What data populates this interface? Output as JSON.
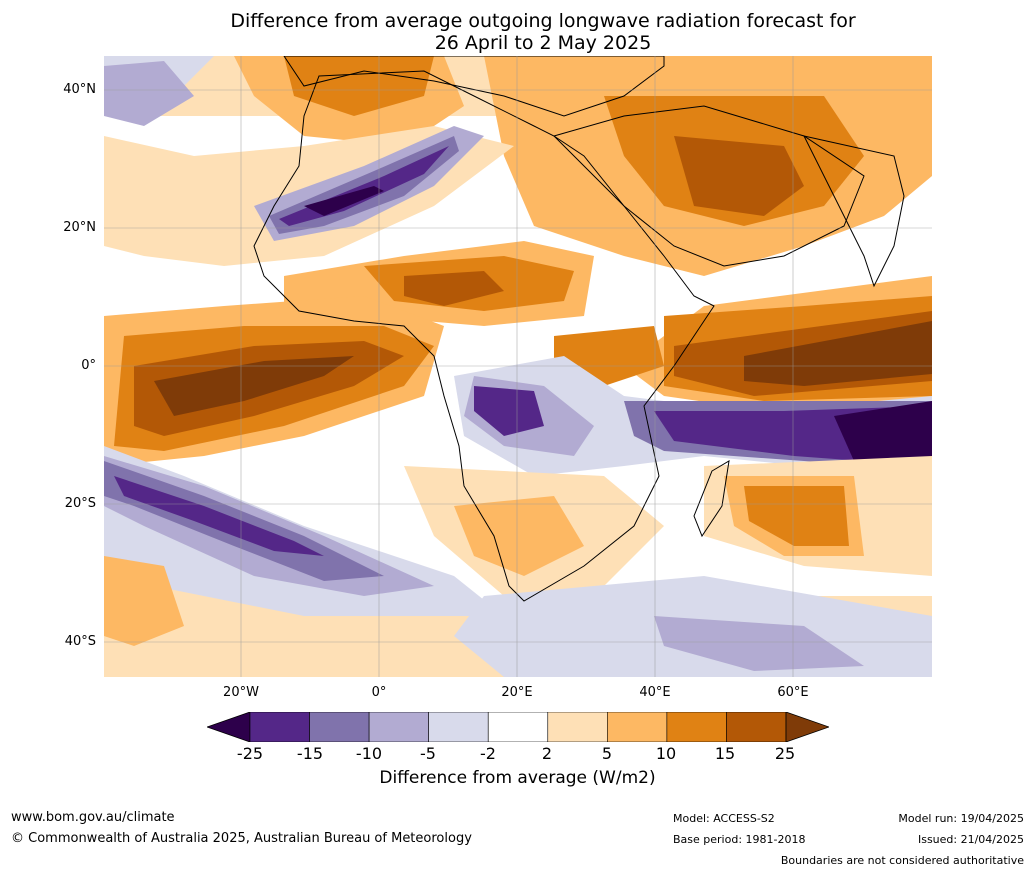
{
  "title_line1": "Difference from average outgoing longwave radiation forecast for",
  "title_line2": "26 April to 2 May 2025",
  "lat_labels": [
    "40°N",
    "20°N",
    "0°",
    "20°S",
    "40°S"
  ],
  "lon_labels": [
    "20°W",
    "0°",
    "20°E",
    "40°E",
    "60°E"
  ],
  "colorbar": {
    "ticks": [
      "-25",
      "-15",
      "-10",
      "-5",
      "-2",
      "2",
      "5",
      "10",
      "15",
      "25"
    ],
    "colors": [
      "#2d004b",
      "#542788",
      "#8073ac",
      "#b2abd2",
      "#d8daeb",
      "#ffffff",
      "#fee0b6",
      "#fdb863",
      "#e08214",
      "#b35806",
      "#7f3b08"
    ],
    "label": "Difference from average (W/m2)"
  },
  "footer": {
    "website": "www.bom.gov.au/climate",
    "copyright": "© Commonwealth of Australia 2025, Australian Bureau of Meteorology",
    "model": "Model: ACCESS-S2",
    "base_period": "Base period: 1981-2018",
    "model_run": "Model run: 19/04/2025",
    "issued": "Issued: 21/04/2025",
    "disclaimer": "Boundaries are not considered authoritative"
  }
}
